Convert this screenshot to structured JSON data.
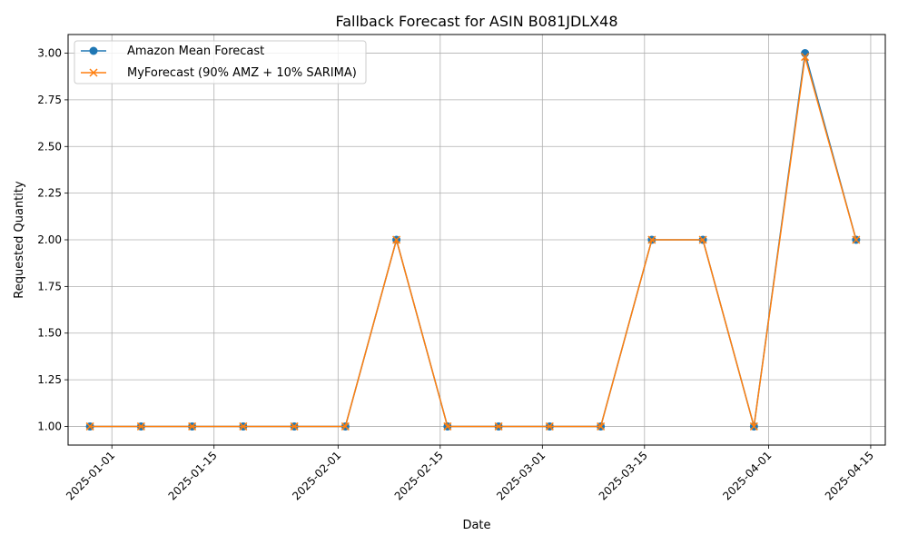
{
  "chart_data": {
    "type": "line",
    "title": "Fallback Forecast for ASIN B081JDLX48",
    "xlabel": "Date",
    "ylabel": "Requested Quantity",
    "x": [
      "2024-12-29",
      "2025-01-05",
      "2025-01-12",
      "2025-01-19",
      "2025-01-26",
      "2025-02-02",
      "2025-02-09",
      "2025-02-16",
      "2025-02-23",
      "2025-03-02",
      "2025-03-09",
      "2025-03-16",
      "2025-03-23",
      "2025-03-30",
      "2025-04-06",
      "2025-04-13"
    ],
    "x_ticks": [
      "2025-01-01",
      "2025-01-15",
      "2025-02-01",
      "2025-02-15",
      "2025-03-01",
      "2025-03-15",
      "2025-04-01",
      "2025-04-15"
    ],
    "xlim": [
      "2024-12-26",
      "2025-04-17"
    ],
    "ylim": [
      0.9,
      3.1
    ],
    "y_ticks": [
      1.0,
      1.25,
      1.5,
      1.75,
      2.0,
      2.25,
      2.5,
      2.75,
      3.0
    ],
    "grid": true,
    "legend_position": "top-left",
    "series": [
      {
        "name": "Amazon Mean Forecast",
        "color": "#1f77b4",
        "marker": "circle",
        "values": [
          1,
          1,
          1,
          1,
          1,
          1,
          2,
          1,
          1,
          1,
          1,
          2,
          2,
          1,
          3,
          2
        ]
      },
      {
        "name": "MyForecast (90% AMZ + 10% SARIMA)",
        "color": "#ff7f0e",
        "marker": "x",
        "values": [
          1,
          1,
          1,
          1,
          1,
          1,
          2,
          1,
          1,
          1,
          1,
          2,
          2,
          1,
          2.98,
          2
        ]
      }
    ]
  }
}
